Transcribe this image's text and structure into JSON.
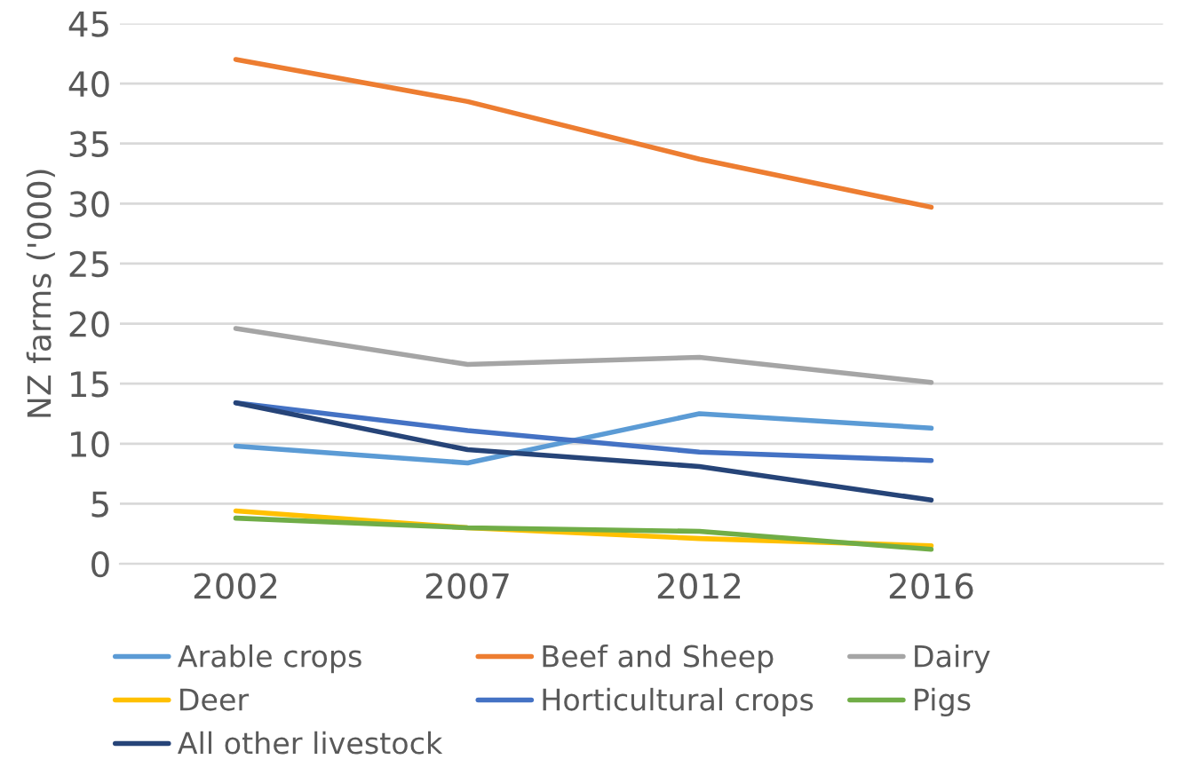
{
  "chart_data": {
    "type": "line",
    "ylabel": "NZ farms ('000)",
    "categories": [
      "2002",
      "2007",
      "2012",
      "2016"
    ],
    "series": [
      {
        "name": "Arable crops",
        "color": "#5b9bd5",
        "values": [
          9.8,
          8.4,
          12.5,
          11.3
        ]
      },
      {
        "name": "Beef and Sheep",
        "color": "#ed7d31",
        "values": [
          42,
          38.5,
          33.7,
          29.7
        ]
      },
      {
        "name": "Dairy",
        "color": "#a5a5a5",
        "values": [
          19.6,
          16.6,
          17.2,
          15.1
        ]
      },
      {
        "name": "Deer",
        "color": "#ffc000",
        "values": [
          4.4,
          3.0,
          2.1,
          1.5
        ]
      },
      {
        "name": "Horticultural crops",
        "color": "#4472c4",
        "values": [
          13.4,
          11.1,
          9.3,
          8.6
        ]
      },
      {
        "name": "Pigs",
        "color": "#70ad47",
        "values": [
          3.8,
          3.0,
          2.7,
          1.2
        ]
      },
      {
        "name": "All other livestock",
        "color": "#264478",
        "values": [
          13.4,
          9.5,
          8.1,
          5.3
        ]
      }
    ],
    "ylim": [
      0,
      45
    ],
    "yticks": [
      0,
      5,
      10,
      15,
      20,
      25,
      30,
      35,
      40,
      45
    ],
    "grid": "y",
    "legend": "bottom",
    "marker": "none",
    "line_style": "solid"
  }
}
